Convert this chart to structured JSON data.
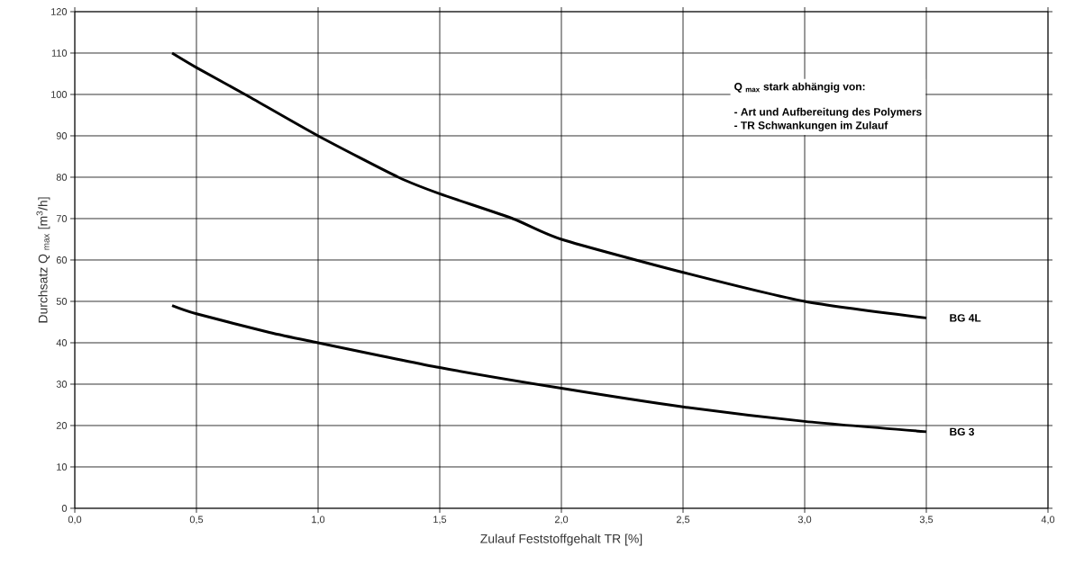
{
  "chart_data": {
    "type": "line",
    "xlabel": "Zulauf Feststoffgehalt TR [%]",
    "ylabel": "Durchsatz Q $_{max}$ [m$^{3}$/h]",
    "annotations": [
      "Q $_{max}$ stark abhängig von:",
      "- Art und Aufbereitung des Polymers",
      "- TR Schwankungen im Zulauf"
    ],
    "xlim": [
      0,
      4
    ],
    "ylim": [
      0,
      120
    ],
    "xticks": [
      {
        "value": 0,
        "label": "0,0"
      },
      {
        "value": 0.5,
        "label": "0,5"
      },
      {
        "value": 1,
        "label": "1,0"
      },
      {
        "value": 1.5,
        "label": "1,5"
      },
      {
        "value": 2,
        "label": "2,0"
      },
      {
        "value": 2.5,
        "label": "2,5"
      },
      {
        "value": 3,
        "label": "3,0"
      },
      {
        "value": 3.5,
        "label": "3,5"
      },
      {
        "value": 4,
        "label": "4,0"
      }
    ],
    "yticks": [
      0,
      10,
      20,
      30,
      40,
      50,
      60,
      70,
      80,
      90,
      100,
      110,
      120
    ],
    "grid": true,
    "legend": false,
    "marker": "none",
    "line_style": "solid",
    "series": [
      {
        "name": "BG 4L",
        "color": "#000000",
        "x": [
          0.4,
          0.5,
          0.7,
          1.0,
          1.33,
          1.5,
          1.8,
          2.0,
          2.5,
          3.0,
          3.5
        ],
        "values": [
          110,
          106.5,
          100,
          90,
          80,
          76,
          70,
          65,
          57,
          50,
          46
        ]
      },
      {
        "name": "BG 3",
        "color": "#000000",
        "x": [
          0.4,
          0.5,
          0.8,
          1.0,
          1.5,
          2.0,
          2.5,
          3.0,
          3.5
        ],
        "values": [
          49,
          47,
          42.5,
          40,
          34,
          29,
          24.5,
          21,
          18.5
        ]
      }
    ]
  }
}
